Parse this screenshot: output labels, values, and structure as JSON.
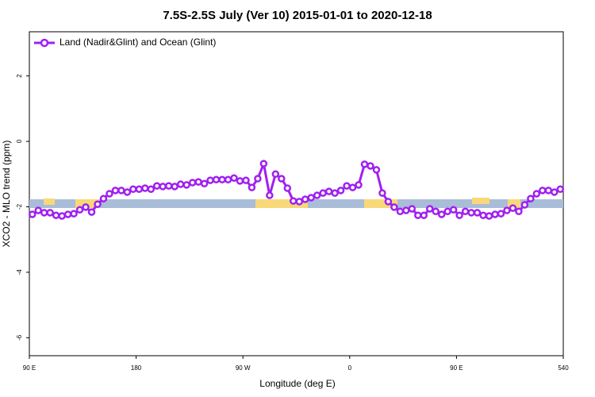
{
  "chart_data": {
    "type": "line",
    "title": "7.5S-2.5S July (Ver 10)   2015-01-01 to 2020-12-18",
    "xlabel": "Longitude (deg E)",
    "ylabel": "XCO2 - MLO trend (ppm)",
    "xlim": [
      90,
      540
    ],
    "ylim": [
      -6.55,
      3.35
    ],
    "xticks": [
      {
        "value": 90,
        "label": "90 E"
      },
      180,
      {
        "value": 270,
        "label": "90 W"
      },
      {
        "value": 360,
        "label": "0"
      },
      {
        "value": 450,
        "label": "90 E"
      },
      540
    ],
    "yticks": [
      -6,
      -4,
      -2,
      0,
      2
    ],
    "x": [
      92.5,
      97.5,
      102.5,
      107.5,
      112.5,
      117.5,
      122.5,
      127.5,
      132.5,
      137.5,
      142.5,
      147.5,
      152.5,
      157.5,
      162.5,
      167.5,
      172.5,
      177.5,
      182.5,
      187.5,
      192.5,
      197.5,
      202.5,
      207.5,
      212.5,
      217.5,
      222.5,
      227.5,
      232.5,
      237.5,
      242.5,
      247.5,
      252.5,
      257.5,
      262.5,
      267.5,
      272.5,
      277.5,
      282.5,
      287.5,
      292.5,
      297.5,
      302.5,
      307.5,
      312.5,
      317.5,
      322.5,
      327.5,
      332.5,
      337.5,
      342.5,
      347.5,
      352.5,
      357.5,
      362.5,
      367.5,
      372.5,
      377.5,
      382.5,
      387.5,
      392.5,
      397.5,
      402.5,
      407.5,
      412.5,
      417.5,
      422.5,
      427.5,
      432.5,
      437.5,
      442.5,
      447.5,
      452.5,
      457.5,
      462.5,
      467.5,
      472.5,
      477.5,
      482.5,
      487.5,
      492.5,
      497.5,
      502.5,
      507.5,
      512.5,
      517.5,
      522.5,
      527.5,
      532.5,
      537.5
    ],
    "legend_position": "top-left",
    "series": [
      {
        "name": "Land (Nadir&Glint) and Ocean (Glint)",
        "color": "#a020f0",
        "values": [
          -2.23,
          -2.11,
          -2.18,
          -2.18,
          -2.26,
          -2.28,
          -2.23,
          -2.21,
          -2.09,
          -2.01,
          -2.16,
          -1.92,
          -1.75,
          -1.6,
          -1.5,
          -1.5,
          -1.55,
          -1.46,
          -1.46,
          -1.43,
          -1.46,
          -1.36,
          -1.38,
          -1.36,
          -1.38,
          -1.31,
          -1.33,
          -1.26,
          -1.24,
          -1.29,
          -1.19,
          -1.17,
          -1.17,
          -1.17,
          -1.12,
          -1.21,
          -1.19,
          -1.41,
          -1.14,
          -0.68,
          -1.65,
          -1.0,
          -1.14,
          -1.43,
          -1.82,
          -1.84,
          -1.77,
          -1.72,
          -1.65,
          -1.58,
          -1.53,
          -1.58,
          -1.5,
          -1.36,
          -1.41,
          -1.33,
          -0.7,
          -0.75,
          -0.87,
          -1.58,
          -1.84,
          -2.01,
          -2.14,
          -2.11,
          -2.06,
          -2.26,
          -2.26,
          -2.06,
          -2.14,
          -2.23,
          -2.14,
          -2.09,
          -2.26,
          -2.14,
          -2.18,
          -2.18,
          -2.26,
          -2.28,
          -2.23,
          -2.21,
          -2.11,
          -2.04,
          -2.14,
          -1.94,
          -1.75,
          -1.6,
          -1.5,
          -1.5,
          -1.55,
          -1.46
        ]
      }
    ]
  }
}
